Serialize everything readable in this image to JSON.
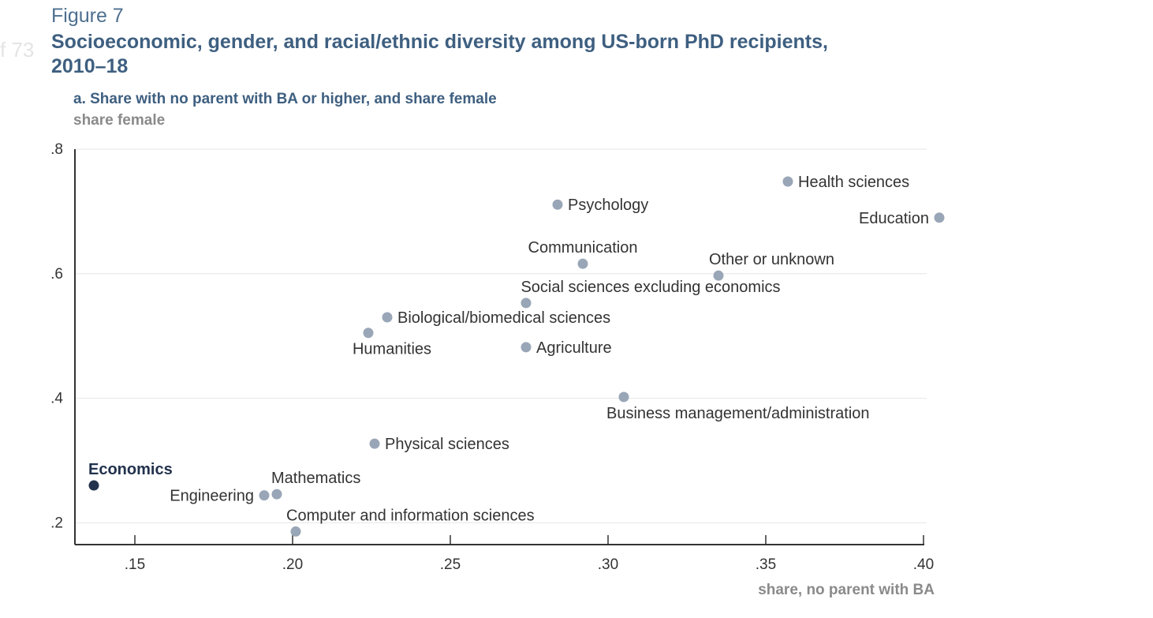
{
  "page": {
    "ghost_text": "f 73",
    "figure_label": "Figure 7",
    "title": "Socioeconomic, gender, and racial/ethnic diversity among US-born PhD recipients, 2010–18",
    "subtitle": "a. Share with no parent with BA or higher, and share female"
  },
  "colors": {
    "point": "#99a6b7",
    "highlight": "#22324d",
    "title": "#3e5f80",
    "axis": "#333333",
    "grid": "#e6e6e6",
    "muted_label": "#8a8a8a"
  },
  "chart_data": {
    "type": "scatter",
    "xlabel": "share, no parent with BA",
    "ylabel": "share female",
    "xlim": [
      0.131,
      0.401
    ],
    "ylim": [
      0.165,
      0.8
    ],
    "xticks": [
      0.15,
      0.2,
      0.25,
      0.3,
      0.35,
      0.4
    ],
    "xtick_labels": [
      ".15",
      ".20",
      ".25",
      ".30",
      ".35",
      ".40"
    ],
    "yticks": [
      0.2,
      0.4,
      0.6,
      0.8
    ],
    "ytick_labels": [
      ".2",
      ".4",
      ".6",
      ".8"
    ],
    "grid": "horizontal",
    "points": [
      {
        "label": "Health sciences",
        "x": 0.357,
        "y": 0.748,
        "label_pos": "right",
        "highlight": false
      },
      {
        "label": "Psychology",
        "x": 0.284,
        "y": 0.711,
        "label_pos": "right",
        "highlight": false
      },
      {
        "label": "Education",
        "x": 0.405,
        "y": 0.69,
        "label_pos": "left",
        "highlight": false
      },
      {
        "label": "Communication",
        "x": 0.292,
        "y": 0.616,
        "label_pos": "above",
        "highlight": false
      },
      {
        "label": "Other or unknown",
        "x": 0.335,
        "y": 0.597,
        "label_pos": "above",
        "highlight": false
      },
      {
        "label": "Social sciences excluding economics",
        "x": 0.274,
        "y": 0.553,
        "label_pos": "above",
        "highlight": false
      },
      {
        "label": "Biological/biomedical sciences",
        "x": 0.23,
        "y": 0.53,
        "label_pos": "right",
        "highlight": false
      },
      {
        "label": "Humanities",
        "x": 0.224,
        "y": 0.505,
        "label_pos": "below",
        "highlight": false
      },
      {
        "label": "Agriculture",
        "x": 0.274,
        "y": 0.482,
        "label_pos": "right",
        "highlight": false
      },
      {
        "label": "Business management/administration",
        "x": 0.305,
        "y": 0.402,
        "label_pos": "below",
        "highlight": false
      },
      {
        "label": "Physical sciences",
        "x": 0.226,
        "y": 0.327,
        "label_pos": "right",
        "highlight": false
      },
      {
        "label": "Economics",
        "x": 0.137,
        "y": 0.26,
        "label_pos": "above",
        "highlight": true
      },
      {
        "label": "Mathematics",
        "x": 0.195,
        "y": 0.246,
        "label_pos": "above",
        "highlight": false
      },
      {
        "label": "Engineering",
        "x": 0.191,
        "y": 0.244,
        "label_pos": "left",
        "highlight": false
      },
      {
        "label": "Computer and information sciences",
        "x": 0.201,
        "y": 0.186,
        "label_pos": "above",
        "highlight": false
      }
    ]
  }
}
